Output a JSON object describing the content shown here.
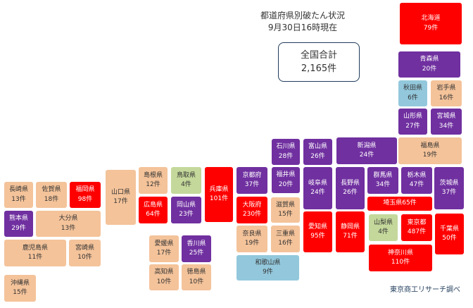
{
  "title": {
    "line1": "都道府県別破たん状況",
    "line2": "9月30日16時現在"
  },
  "total": {
    "label": "全国合計",
    "value": "2,165件"
  },
  "source": "東京商工リサーチ調べ",
  "legend_colors": {
    "red": "#ff0000",
    "purple": "#7030a0",
    "orange": "#f4c39a",
    "green": "#c4d89b",
    "blue": "#93c8dc"
  },
  "prefectures": [
    {
      "id": "hokkaido",
      "name": "北海道",
      "count": "79件",
      "color": "red"
    },
    {
      "id": "aomori",
      "name": "青森県",
      "count": "20件",
      "color": "purple"
    },
    {
      "id": "akita",
      "name": "秋田県",
      "count": "6件",
      "color": "blue"
    },
    {
      "id": "iwate",
      "name": "岩手県",
      "count": "16件",
      "color": "orange"
    },
    {
      "id": "yamagata",
      "name": "山形県",
      "count": "27件",
      "color": "purple"
    },
    {
      "id": "miyagi",
      "name": "宮城県",
      "count": "34件",
      "color": "purple"
    },
    {
      "id": "fukushima",
      "name": "福島県",
      "count": "19件",
      "color": "orange"
    },
    {
      "id": "ishikawa",
      "name": "石川県",
      "count": "28件",
      "color": "purple"
    },
    {
      "id": "toyama",
      "name": "富山県",
      "count": "26件",
      "color": "purple"
    },
    {
      "id": "niigata",
      "name": "新潟県",
      "count": "24件",
      "color": "purple"
    },
    {
      "id": "gunma",
      "name": "群馬県",
      "count": "34件",
      "color": "purple"
    },
    {
      "id": "tochigi",
      "name": "栃木県",
      "count": "47件",
      "color": "purple"
    },
    {
      "id": "ibaraki",
      "name": "茨城県",
      "count": "37件",
      "color": "purple"
    },
    {
      "id": "saitama",
      "name": "埼玉県",
      "count": "65件",
      "color": "red"
    },
    {
      "id": "nagano",
      "name": "長野県",
      "count": "26件",
      "color": "purple"
    },
    {
      "id": "gifu",
      "name": "岐阜県",
      "count": "24件",
      "color": "purple"
    },
    {
      "id": "fukui",
      "name": "福井県",
      "count": "20件",
      "color": "purple"
    },
    {
      "id": "kyoto",
      "name": "京都府",
      "count": "37件",
      "color": "purple"
    },
    {
      "id": "osaka",
      "name": "大阪府",
      "count": "230件",
      "color": "red"
    },
    {
      "id": "shiga",
      "name": "滋賀県",
      "count": "15件",
      "color": "orange"
    },
    {
      "id": "hyogo",
      "name": "兵庫県",
      "count": "101件",
      "color": "red"
    },
    {
      "id": "nara",
      "name": "奈良県",
      "count": "19件",
      "color": "orange"
    },
    {
      "id": "mie",
      "name": "三重県",
      "count": "16件",
      "color": "orange"
    },
    {
      "id": "aichi",
      "name": "愛知県",
      "count": "95件",
      "color": "red"
    },
    {
      "id": "shizuoka",
      "name": "静岡県",
      "count": "71件",
      "color": "red"
    },
    {
      "id": "yamanashi",
      "name": "山梨県",
      "count": "4件",
      "color": "green"
    },
    {
      "id": "tokyo",
      "name": "東京都",
      "count": "487件",
      "color": "red"
    },
    {
      "id": "chiba",
      "name": "千葉県",
      "count": "50件",
      "color": "red"
    },
    {
      "id": "kanagawa",
      "name": "神奈川県",
      "count": "110件",
      "color": "red"
    },
    {
      "id": "wakayama",
      "name": "和歌山県",
      "count": "9件",
      "color": "blue"
    },
    {
      "id": "yamaguchi",
      "name": "山口県",
      "count": "17件",
      "color": "orange"
    },
    {
      "id": "shimane",
      "name": "島根県",
      "count": "12件",
      "color": "orange"
    },
    {
      "id": "tottori",
      "name": "鳥取県",
      "count": "4件",
      "color": "green"
    },
    {
      "id": "hiroshima",
      "name": "広島県",
      "count": "64件",
      "color": "red"
    },
    {
      "id": "okayama",
      "name": "岡山県",
      "count": "23件",
      "color": "purple"
    },
    {
      "id": "ehime",
      "name": "愛媛県",
      "count": "17件",
      "color": "orange"
    },
    {
      "id": "kagawa",
      "name": "香川県",
      "count": "25件",
      "color": "purple"
    },
    {
      "id": "kochi",
      "name": "高知県",
      "count": "10件",
      "color": "orange"
    },
    {
      "id": "tokushima",
      "name": "徳島県",
      "count": "10件",
      "color": "orange"
    },
    {
      "id": "nagasaki",
      "name": "長崎県",
      "count": "13件",
      "color": "orange"
    },
    {
      "id": "saga",
      "name": "佐賀県",
      "count": "18件",
      "color": "orange"
    },
    {
      "id": "fukuoka",
      "name": "福岡県",
      "count": "98件",
      "color": "red"
    },
    {
      "id": "kumamoto",
      "name": "熊本県",
      "count": "29件",
      "color": "purple"
    },
    {
      "id": "oita",
      "name": "大分県",
      "count": "13件",
      "color": "orange"
    },
    {
      "id": "kagoshima",
      "name": "鹿児島県",
      "count": "11件",
      "color": "orange"
    },
    {
      "id": "miyazaki",
      "name": "宮崎県",
      "count": "10件",
      "color": "orange"
    },
    {
      "id": "okinawa",
      "name": "沖縄県",
      "count": "15件",
      "color": "orange"
    }
  ]
}
